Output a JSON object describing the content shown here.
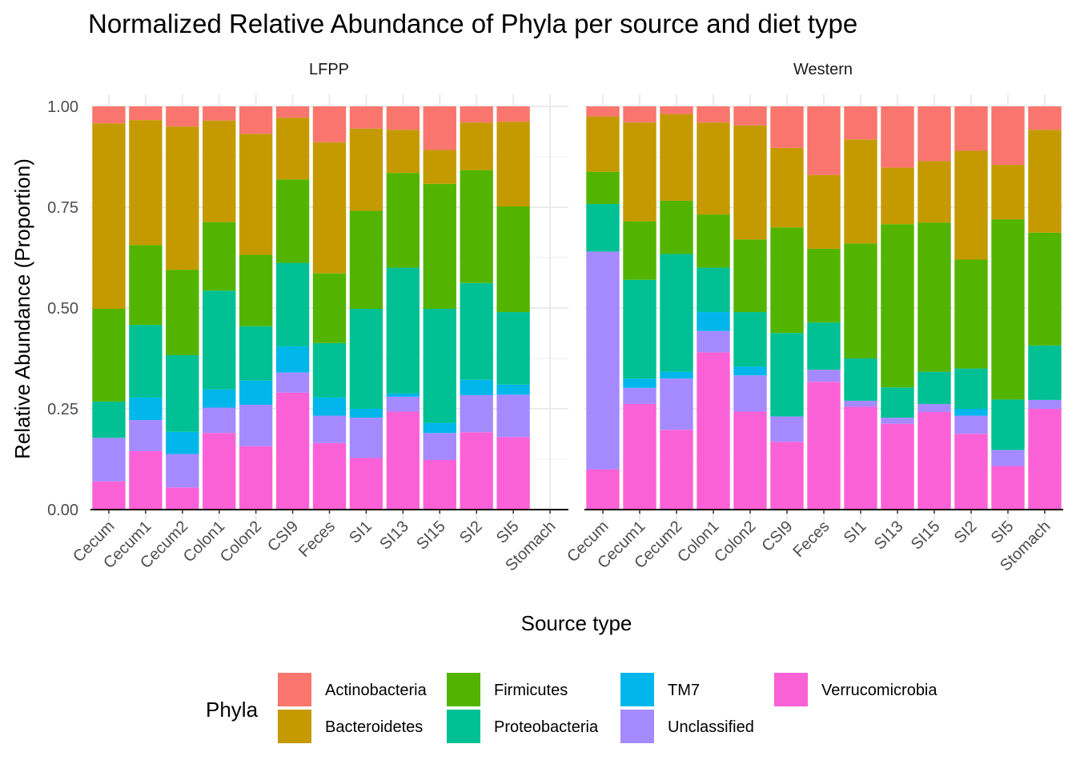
{
  "chart_data": {
    "type": "bar",
    "stacked": true,
    "title": "Normalized Relative Abundance of Phyla per source and diet type",
    "xlabel": "Source type",
    "ylabel": "Relative Abundance (Proportion)",
    "ylim": [
      0,
      1
    ],
    "yticks": [
      "0.00",
      "0.25",
      "0.50",
      "0.75",
      "1.00"
    ],
    "grid": true,
    "legend_title": "Phyla",
    "legend_position": "bottom",
    "categories": [
      "Cecum",
      "Cecum1",
      "Cecum2",
      "Colon1",
      "Colon2",
      "CSI9",
      "Feces",
      "SI1",
      "SI13",
      "SI15",
      "SI2",
      "SI5",
      "Stomach"
    ],
    "series": [
      {
        "name": "Actinobacteria",
        "color": "#F8766D"
      },
      {
        "name": "Bacteroidetes",
        "color": "#C49A00"
      },
      {
        "name": "Firmicutes",
        "color": "#53B400"
      },
      {
        "name": "Proteobacteria",
        "color": "#00C094"
      },
      {
        "name": "TM7",
        "color": "#00B6EB"
      },
      {
        "name": "Unclassified",
        "color": "#A58AFF"
      },
      {
        "name": "Verrucomicrobia",
        "color": "#FB61D7"
      }
    ],
    "stack_order_bottom_to_top": [
      "Verrucomicrobia",
      "Unclassified",
      "TM7",
      "Proteobacteria",
      "Firmicutes",
      "Bacteroidetes",
      "Actinobacteria"
    ],
    "panels": [
      {
        "name": "LFPP",
        "bars": {
          "Cecum": {
            "Verrucomicrobia": 0.07,
            "Unclassified": 0.108,
            "TM7": 0.0,
            "Proteobacteria": 0.09,
            "Firmicutes": 0.23,
            "Bacteroidetes": 0.46,
            "Actinobacteria": 0.045
          },
          "Cecum1": {
            "Verrucomicrobia": 0.145,
            "Unclassified": 0.077,
            "TM7": 0.056,
            "Proteobacteria": 0.18,
            "Firmicutes": 0.198,
            "Bacteroidetes": 0.31,
            "Actinobacteria": 0.034
          },
          "Cecum2": {
            "Verrucomicrobia": 0.055,
            "Unclassified": 0.083,
            "TM7": 0.055,
            "Proteobacteria": 0.19,
            "Firmicutes": 0.212,
            "Bacteroidetes": 0.355,
            "Actinobacteria": 0.05
          },
          "Colon1": {
            "Verrucomicrobia": 0.19,
            "Unclassified": 0.063,
            "TM7": 0.045,
            "Proteobacteria": 0.245,
            "Firmicutes": 0.17,
            "Bacteroidetes": 0.252,
            "Actinobacteria": 0.035
          },
          "Colon2": {
            "Verrucomicrobia": 0.157,
            "Unclassified": 0.103,
            "TM7": 0.06,
            "Proteobacteria": 0.135,
            "Firmicutes": 0.177,
            "Bacteroidetes": 0.3,
            "Actinobacteria": 0.068
          },
          "CSI9": {
            "Verrucomicrobia": 0.29,
            "Unclassified": 0.05,
            "TM7": 0.065,
            "Proteobacteria": 0.207,
            "Firmicutes": 0.207,
            "Bacteroidetes": 0.153,
            "Actinobacteria": 0.028
          },
          "Feces": {
            "Verrucomicrobia": 0.165,
            "Unclassified": 0.068,
            "TM7": 0.045,
            "Proteobacteria": 0.135,
            "Firmicutes": 0.173,
            "Bacteroidetes": 0.325,
            "Actinobacteria": 0.089
          },
          "SI1": {
            "Verrucomicrobia": 0.128,
            "Unclassified": 0.1,
            "TM7": 0.022,
            "Proteobacteria": 0.248,
            "Firmicutes": 0.243,
            "Bacteroidetes": 0.204,
            "Actinobacteria": 0.055
          },
          "SI13": {
            "Verrucomicrobia": 0.243,
            "Unclassified": 0.037,
            "TM7": 0.008,
            "Proteobacteria": 0.312,
            "Firmicutes": 0.235,
            "Bacteroidetes": 0.107,
            "Actinobacteria": 0.058
          },
          "SI15": {
            "Verrucomicrobia": 0.123,
            "Unclassified": 0.067,
            "TM7": 0.025,
            "Proteobacteria": 0.283,
            "Firmicutes": 0.31,
            "Bacteroidetes": 0.084,
            "Actinobacteria": 0.108
          },
          "SI2": {
            "Verrucomicrobia": 0.192,
            "Unclassified": 0.092,
            "TM7": 0.038,
            "Proteobacteria": 0.24,
            "Firmicutes": 0.28,
            "Bacteroidetes": 0.118,
            "Actinobacteria": 0.04
          },
          "SI5": {
            "Verrucomicrobia": 0.18,
            "Unclassified": 0.105,
            "TM7": 0.025,
            "Proteobacteria": 0.18,
            "Firmicutes": 0.262,
            "Bacteroidetes": 0.21,
            "Actinobacteria": 0.038
          },
          "Stomach": null
        }
      },
      {
        "name": "Western",
        "bars": {
          "Cecum": {
            "Verrucomicrobia": 0.1,
            "Unclassified": 0.54,
            "TM7": 0.0,
            "Proteobacteria": 0.118,
            "Firmicutes": 0.08,
            "Bacteroidetes": 0.137,
            "Actinobacteria": 0.025
          },
          "Cecum1": {
            "Verrucomicrobia": 0.262,
            "Unclassified": 0.04,
            "TM7": 0.023,
            "Proteobacteria": 0.245,
            "Firmicutes": 0.145,
            "Bacteroidetes": 0.245,
            "Actinobacteria": 0.04
          },
          "Cecum2": {
            "Verrucomicrobia": 0.198,
            "Unclassified": 0.127,
            "TM7": 0.017,
            "Proteobacteria": 0.292,
            "Firmicutes": 0.132,
            "Bacteroidetes": 0.215,
            "Actinobacteria": 0.019
          },
          "Colon1": {
            "Verrucomicrobia": 0.39,
            "Unclassified": 0.053,
            "TM7": 0.047,
            "Proteobacteria": 0.11,
            "Firmicutes": 0.132,
            "Bacteroidetes": 0.228,
            "Actinobacteria": 0.04
          },
          "Colon2": {
            "Verrucomicrobia": 0.243,
            "Unclassified": 0.09,
            "TM7": 0.022,
            "Proteobacteria": 0.135,
            "Firmicutes": 0.18,
            "Bacteroidetes": 0.283,
            "Actinobacteria": 0.047
          },
          "CSI9": {
            "Verrucomicrobia": 0.168,
            "Unclassified": 0.063,
            "TM7": 0.0,
            "Proteobacteria": 0.207,
            "Firmicutes": 0.262,
            "Bacteroidetes": 0.197,
            "Actinobacteria": 0.103
          },
          "Feces": {
            "Verrucomicrobia": 0.317,
            "Unclassified": 0.03,
            "TM7": 0.0,
            "Proteobacteria": 0.117,
            "Firmicutes": 0.183,
            "Bacteroidetes": 0.183,
            "Actinobacteria": 0.17
          },
          "SI1": {
            "Verrucomicrobia": 0.255,
            "Unclassified": 0.015,
            "TM7": 0.0,
            "Proteobacteria": 0.105,
            "Firmicutes": 0.285,
            "Bacteroidetes": 0.258,
            "Actinobacteria": 0.082
          },
          "SI13": {
            "Verrucomicrobia": 0.213,
            "Unclassified": 0.015,
            "TM7": 0.0,
            "Proteobacteria": 0.075,
            "Firmicutes": 0.405,
            "Bacteroidetes": 0.14,
            "Actinobacteria": 0.152
          },
          "SI15": {
            "Verrucomicrobia": 0.242,
            "Unclassified": 0.02,
            "TM7": 0.0,
            "Proteobacteria": 0.08,
            "Firmicutes": 0.37,
            "Bacteroidetes": 0.152,
            "Actinobacteria": 0.136
          },
          "SI2": {
            "Verrucomicrobia": 0.188,
            "Unclassified": 0.045,
            "TM7": 0.017,
            "Proteobacteria": 0.1,
            "Firmicutes": 0.27,
            "Bacteroidetes": 0.27,
            "Actinobacteria": 0.11
          },
          "SI5": {
            "Verrucomicrobia": 0.108,
            "Unclassified": 0.04,
            "TM7": 0.0,
            "Proteobacteria": 0.125,
            "Firmicutes": 0.447,
            "Bacteroidetes": 0.135,
            "Actinobacteria": 0.145
          },
          "Stomach": {
            "Verrucomicrobia": 0.25,
            "Unclassified": 0.022,
            "TM7": 0.0,
            "Proteobacteria": 0.135,
            "Firmicutes": 0.28,
            "Bacteroidetes": 0.255,
            "Actinobacteria": 0.058
          }
        }
      }
    ]
  }
}
